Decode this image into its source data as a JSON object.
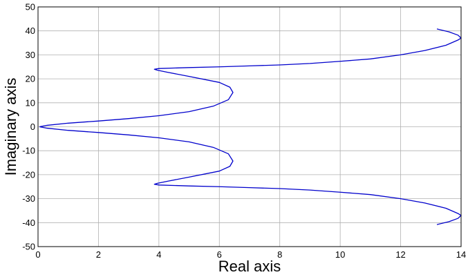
{
  "chart_data": {
    "type": "line",
    "title": "",
    "xlabel": "Real axis",
    "ylabel": "Imaginary axis",
    "xlim": [
      0,
      14
    ],
    "ylim": [
      -50,
      50
    ],
    "grid": true,
    "xticks": [
      0,
      2,
      4,
      6,
      8,
      10,
      12,
      14
    ],
    "yticks": [
      -50,
      -40,
      -30,
      -20,
      -10,
      0,
      10,
      20,
      30,
      40,
      50
    ],
    "series": [
      {
        "color": "#0000cc",
        "points": [
          [
            0.05,
            0.0
          ],
          [
            0.3,
            0.6
          ],
          [
            1.0,
            1.5
          ],
          [
            2.0,
            2.4
          ],
          [
            3.0,
            3.4
          ],
          [
            4.0,
            4.6
          ],
          [
            5.0,
            6.3
          ],
          [
            5.8,
            8.6
          ],
          [
            6.3,
            11.3
          ],
          [
            6.45,
            14.3
          ],
          [
            6.35,
            16.5
          ],
          [
            6.0,
            18.5
          ],
          [
            5.0,
            21.0
          ],
          [
            4.3,
            22.7
          ],
          [
            3.95,
            23.6
          ],
          [
            3.85,
            24.0
          ],
          [
            4.0,
            24.3
          ],
          [
            5.0,
            24.7
          ],
          [
            6.0,
            25.0
          ],
          [
            7.0,
            25.4
          ],
          [
            8.0,
            25.8
          ],
          [
            9.0,
            26.4
          ],
          [
            10.0,
            27.3
          ],
          [
            11.0,
            28.3
          ],
          [
            12.0,
            30.0
          ],
          [
            12.8,
            31.8
          ],
          [
            13.5,
            34.0
          ],
          [
            13.9,
            36.2
          ],
          [
            14.0,
            37.0
          ],
          [
            13.9,
            38.2
          ],
          [
            13.6,
            39.6
          ],
          [
            13.2,
            40.8
          ]
        ]
      },
      {
        "color": "#0000cc",
        "points": [
          [
            0.05,
            0.0
          ],
          [
            0.3,
            -0.6
          ],
          [
            1.0,
            -1.5
          ],
          [
            2.0,
            -2.4
          ],
          [
            3.0,
            -3.4
          ],
          [
            4.0,
            -4.6
          ],
          [
            5.0,
            -6.3
          ],
          [
            5.8,
            -8.6
          ],
          [
            6.3,
            -11.3
          ],
          [
            6.45,
            -14.3
          ],
          [
            6.35,
            -16.5
          ],
          [
            6.0,
            -18.5
          ],
          [
            5.0,
            -21.0
          ],
          [
            4.3,
            -22.7
          ],
          [
            3.95,
            -23.6
          ],
          [
            3.85,
            -24.0
          ],
          [
            4.0,
            -24.3
          ],
          [
            5.0,
            -24.7
          ],
          [
            6.0,
            -25.0
          ],
          [
            7.0,
            -25.4
          ],
          [
            8.0,
            -25.8
          ],
          [
            9.0,
            -26.4
          ],
          [
            10.0,
            -27.3
          ],
          [
            11.0,
            -28.3
          ],
          [
            12.0,
            -30.0
          ],
          [
            12.8,
            -31.8
          ],
          [
            13.5,
            -34.0
          ],
          [
            13.9,
            -36.2
          ],
          [
            14.0,
            -37.0
          ],
          [
            13.9,
            -38.2
          ],
          [
            13.6,
            -39.6
          ],
          [
            13.2,
            -40.8
          ]
        ]
      }
    ]
  }
}
